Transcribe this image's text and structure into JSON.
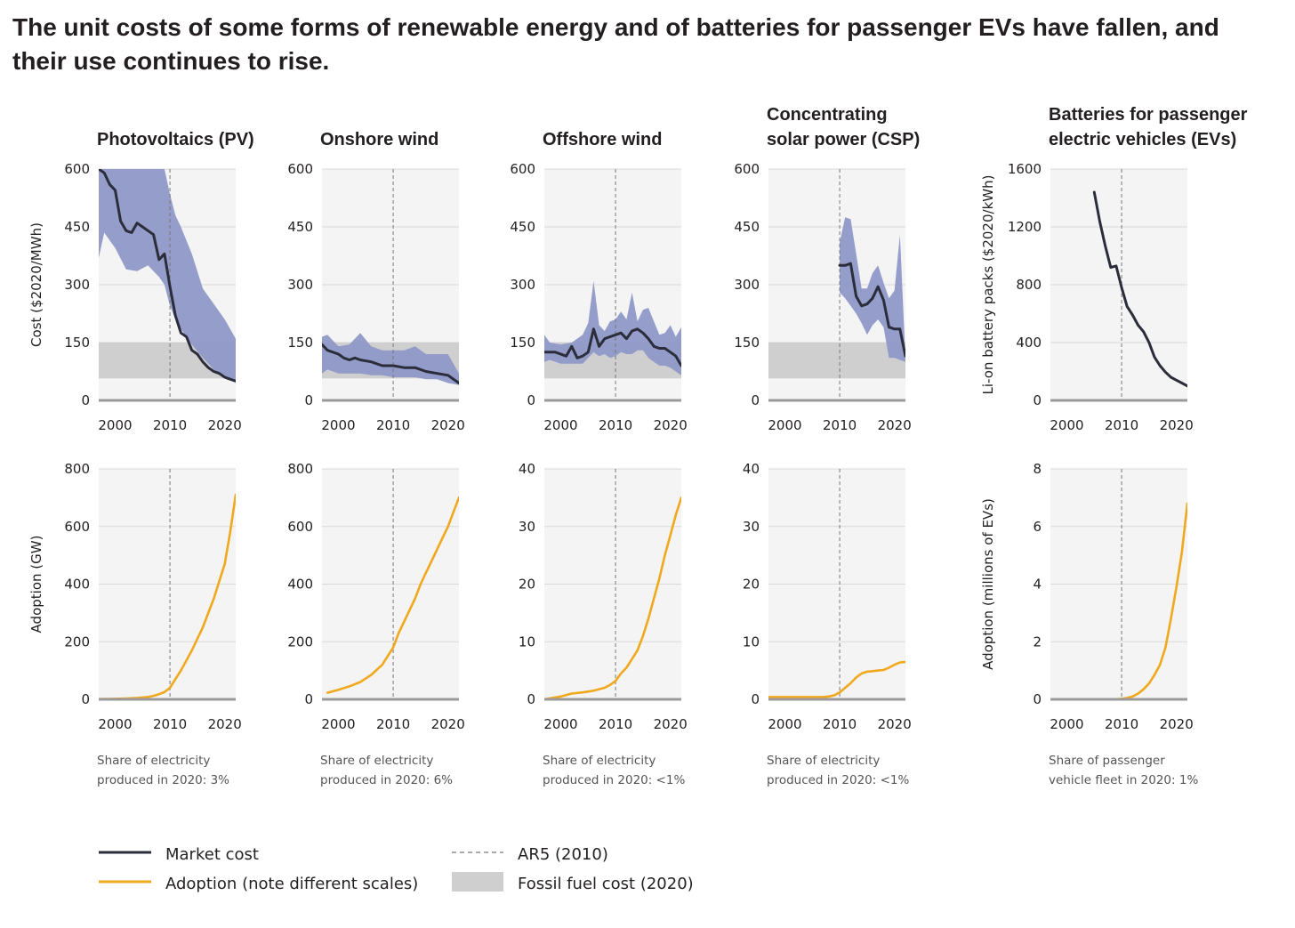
{
  "title": "The unit costs of some forms of renewable energy and of batteries for passenger EVs have fallen, and their use continues to rise.",
  "colors": {
    "cost_line": "#2b2d3a",
    "band": "#8f98c8",
    "adoption_line": "#f0a81c",
    "fossil_band": "#cfcfcf",
    "plot_bg": "#f4f4f4",
    "ar5_line": "#777777"
  },
  "legend": {
    "market_cost": "Market cost",
    "adoption": "Adoption (note different scales)",
    "ar5": "AR5 (2010)",
    "fossil": "Fossil fuel cost (2020)"
  },
  "chart_data": [
    {
      "type": "line",
      "panel": "Photovoltaics (PV)",
      "row": "cost",
      "title": [
        "Photovoltaics (PV)"
      ],
      "ylabel": "Cost ($2020/MWh)",
      "ylim": [
        0,
        600
      ],
      "yticks": [
        0,
        150,
        300,
        450,
        600
      ],
      "xlim": [
        1997,
        2022
      ],
      "xticks": [
        2000,
        2010,
        2020
      ],
      "ar5_year": 2010,
      "fossil_range": [
        57,
        150
      ],
      "series": [
        {
          "name": "Market cost",
          "x": [
            1997,
            1998,
            1999,
            2000,
            2001,
            2002,
            2003,
            2004,
            2005,
            2006,
            2007,
            2008,
            2009,
            2010,
            2011,
            2012,
            2013,
            2014,
            2015,
            2016,
            2017,
            2018,
            2019,
            2020,
            2021,
            2022
          ],
          "y": [
            600,
            590,
            560,
            545,
            465,
            440,
            435,
            460,
            450,
            440,
            430,
            365,
            380,
            295,
            220,
            175,
            165,
            130,
            120,
            100,
            85,
            75,
            70,
            60,
            55,
            50
          ]
        }
      ],
      "band": {
        "x": [
          1997,
          1998,
          2000,
          2002,
          2004,
          2006,
          2008,
          2009,
          2010,
          2011,
          2012,
          2014,
          2016,
          2018,
          2020,
          2022
        ],
        "low": [
          370,
          435,
          395,
          340,
          335,
          350,
          320,
          300,
          245,
          210,
          185,
          145,
          110,
          80,
          60,
          50
        ],
        "high": [
          600,
          600,
          600,
          600,
          600,
          600,
          600,
          600,
          535,
          480,
          450,
          380,
          290,
          250,
          210,
          160
        ]
      }
    },
    {
      "type": "line",
      "panel": "Onshore wind",
      "row": "cost",
      "title": [
        "Onshore wind"
      ],
      "ylim": [
        0,
        600
      ],
      "yticks": [
        0,
        150,
        300,
        450,
        600
      ],
      "xlim": [
        1997,
        2022
      ],
      "xticks": [
        2000,
        2010,
        2020
      ],
      "ar5_year": 2010,
      "fossil_range": [
        57,
        150
      ],
      "series": [
        {
          "name": "Market cost",
          "x": [
            1997,
            1998,
            2000,
            2001,
            2002,
            2003,
            2004,
            2006,
            2008,
            2010,
            2012,
            2014,
            2016,
            2018,
            2020,
            2021,
            2022
          ],
          "y": [
            145,
            130,
            120,
            110,
            105,
            110,
            105,
            100,
            90,
            90,
            85,
            85,
            75,
            70,
            65,
            55,
            45
          ]
        }
      ],
      "band": {
        "x": [
          1997,
          1998,
          2000,
          2002,
          2004,
          2006,
          2008,
          2010,
          2012,
          2014,
          2016,
          2018,
          2020,
          2022
        ],
        "low": [
          70,
          80,
          70,
          70,
          70,
          65,
          65,
          60,
          60,
          60,
          55,
          55,
          45,
          40
        ],
        "high": [
          165,
          170,
          140,
          145,
          175,
          140,
          130,
          130,
          130,
          140,
          120,
          120,
          120,
          70
        ]
      }
    },
    {
      "type": "line",
      "panel": "Offshore wind",
      "row": "cost",
      "title": [
        "Offshore wind"
      ],
      "ylim": [
        0,
        600
      ],
      "yticks": [
        0,
        150,
        300,
        450,
        600
      ],
      "xlim": [
        1997,
        2022
      ],
      "xticks": [
        2000,
        2010,
        2020
      ],
      "ar5_year": 2010,
      "fossil_range": [
        57,
        150
      ],
      "series": [
        {
          "name": "Market cost",
          "x": [
            1997,
            1999,
            2001,
            2002,
            2003,
            2004,
            2005,
            2006,
            2007,
            2008,
            2009,
            2010,
            2011,
            2012,
            2013,
            2014,
            2015,
            2016,
            2017,
            2018,
            2019,
            2020,
            2021,
            2022
          ],
          "y": [
            125,
            125,
            115,
            140,
            110,
            115,
            125,
            185,
            140,
            160,
            165,
            170,
            175,
            160,
            180,
            185,
            175,
            160,
            140,
            135,
            135,
            125,
            115,
            90
          ]
        }
      ],
      "band": {
        "x": [
          1997,
          1998,
          2000,
          2002,
          2004,
          2005,
          2006,
          2007,
          2008,
          2009,
          2010,
          2011,
          2012,
          2013,
          2014,
          2015,
          2016,
          2017,
          2018,
          2019,
          2020,
          2021,
          2022
        ],
        "low": [
          100,
          105,
          95,
          95,
          95,
          110,
          125,
          115,
          120,
          110,
          115,
          125,
          120,
          120,
          130,
          130,
          110,
          100,
          90,
          90,
          85,
          75,
          65
        ],
        "high": [
          170,
          150,
          145,
          150,
          170,
          200,
          310,
          195,
          180,
          205,
          210,
          230,
          210,
          280,
          205,
          235,
          240,
          205,
          170,
          175,
          195,
          165,
          190
        ]
      }
    },
    {
      "type": "line",
      "panel": "Concentrating solar power (CSP)",
      "row": "cost",
      "title": [
        "Concentrating",
        "solar power (CSP)"
      ],
      "ylim": [
        0,
        600
      ],
      "yticks": [
        0,
        150,
        300,
        450,
        600
      ],
      "xlim": [
        1997,
        2022
      ],
      "xticks": [
        2000,
        2010,
        2020
      ],
      "ar5_year": 2010,
      "fossil_range": [
        57,
        150
      ],
      "series": [
        {
          "name": "Market cost",
          "x": [
            2010,
            2011,
            2012,
            2013,
            2014,
            2015,
            2016,
            2017,
            2018,
            2019,
            2020,
            2021,
            2022
          ],
          "y": [
            350,
            350,
            355,
            270,
            245,
            250,
            265,
            295,
            260,
            190,
            185,
            185,
            115
          ]
        }
      ],
      "band": {
        "x": [
          2010,
          2011,
          2012,
          2013,
          2014,
          2015,
          2016,
          2017,
          2018,
          2019,
          2020,
          2021,
          2022
        ],
        "low": [
          280,
          265,
          245,
          225,
          200,
          170,
          195,
          210,
          190,
          110,
          110,
          105,
          100
        ],
        "high": [
          410,
          475,
          470,
          380,
          290,
          290,
          330,
          350,
          305,
          265,
          285,
          430,
          110
        ]
      }
    },
    {
      "type": "line",
      "panel": "Batteries for passenger electric vehicles (EVs)",
      "row": "cost",
      "title": [
        "Batteries for passenger",
        "electric vehicles (EVs)"
      ],
      "ylabel": "Li-on battery packs ($2020/kWh)",
      "ylim": [
        0,
        1600
      ],
      "yticks": [
        0,
        400,
        800,
        1200,
        1600
      ],
      "xlim": [
        1997,
        2022
      ],
      "xticks": [
        2000,
        2010,
        2020
      ],
      "ar5_year": 2010,
      "series": [
        {
          "name": "Market cost",
          "x": [
            2005,
            2006,
            2007,
            2008,
            2009,
            2010,
            2011,
            2012,
            2013,
            2014,
            2015,
            2016,
            2017,
            2018,
            2019,
            2020,
            2021,
            2022
          ],
          "y": [
            1440,
            1240,
            1070,
            920,
            930,
            780,
            650,
            590,
            520,
            475,
            400,
            300,
            240,
            195,
            160,
            140,
            120,
            100
          ]
        }
      ]
    },
    {
      "type": "line",
      "panel": "Photovoltaics (PV)",
      "row": "adoption",
      "ylabel": "Adoption (GW)",
      "ylim": [
        0,
        800
      ],
      "yticks": [
        0,
        200,
        400,
        600,
        800
      ],
      "xlim": [
        1997,
        2022
      ],
      "xticks": [
        2000,
        2010,
        2020
      ],
      "ar5_year": 2010,
      "note": [
        "Share of electricity",
        "produced in 2020: 3%"
      ],
      "series": [
        {
          "name": "Adoption",
          "x": [
            1997,
            2000,
            2002,
            2004,
            2006,
            2007,
            2008,
            2009,
            2010,
            2011,
            2012,
            2013,
            2014,
            2015,
            2016,
            2017,
            2018,
            2019,
            2020,
            2021,
            2022
          ],
          "y": [
            1,
            2,
            3,
            5,
            8,
            12,
            18,
            25,
            40,
            70,
            100,
            135,
            170,
            210,
            250,
            300,
            350,
            410,
            470,
            580,
            710
          ]
        }
      ]
    },
    {
      "type": "line",
      "panel": "Onshore wind",
      "row": "adoption",
      "ylim": [
        0,
        800
      ],
      "yticks": [
        0,
        200,
        400,
        600,
        800
      ],
      "xlim": [
        1997,
        2022
      ],
      "xticks": [
        2000,
        2010,
        2020
      ],
      "ar5_year": 2010,
      "note": [
        "Share of electricity",
        "produced in 2020: 6%"
      ],
      "series": [
        {
          "name": "Adoption",
          "x": [
            1998,
            2000,
            2002,
            2004,
            2006,
            2008,
            2010,
            2011,
            2012,
            2013,
            2014,
            2015,
            2016,
            2017,
            2018,
            2019,
            2020,
            2021,
            2022
          ],
          "y": [
            23,
            33,
            45,
            60,
            85,
            120,
            180,
            230,
            270,
            310,
            350,
            400,
            440,
            480,
            520,
            560,
            600,
            650,
            700
          ]
        }
      ]
    },
    {
      "type": "line",
      "panel": "Offshore wind",
      "row": "adoption",
      "ylim": [
        0,
        40
      ],
      "yticks": [
        0,
        10,
        20,
        30,
        40
      ],
      "xlim": [
        1997,
        2022
      ],
      "xticks": [
        2000,
        2010,
        2020
      ],
      "ar5_year": 2010,
      "note": [
        "Share of electricity",
        "produced in 2020: <1%"
      ],
      "series": [
        {
          "name": "Adoption",
          "x": [
            1997,
            2000,
            2002,
            2004,
            2006,
            2008,
            2009,
            2010,
            2011,
            2012,
            2013,
            2014,
            2015,
            2016,
            2017,
            2018,
            2019,
            2020,
            2021,
            2022
          ],
          "y": [
            0,
            0.5,
            1,
            1.2,
            1.5,
            2,
            2.5,
            3.2,
            4.5,
            5.5,
            7,
            8.5,
            11,
            14,
            17.5,
            21,
            25,
            28.5,
            32,
            35
          ]
        }
      ]
    },
    {
      "type": "line",
      "panel": "Concentrating solar power (CSP)",
      "row": "adoption",
      "ylim": [
        0,
        40
      ],
      "yticks": [
        0,
        10,
        20,
        30,
        40
      ],
      "xlim": [
        1997,
        2022
      ],
      "xticks": [
        2000,
        2010,
        2020
      ],
      "ar5_year": 2010,
      "note": [
        "Share of electricity",
        "produced in 2020: <1%"
      ],
      "series": [
        {
          "name": "Adoption",
          "x": [
            1997,
            2000,
            2004,
            2007,
            2008,
            2009,
            2010,
            2011,
            2012,
            2013,
            2014,
            2015,
            2016,
            2017,
            2018,
            2019,
            2020,
            2021,
            2022
          ],
          "y": [
            0.4,
            0.4,
            0.4,
            0.4,
            0.5,
            0.7,
            1.2,
            2,
            2.8,
            3.8,
            4.5,
            4.8,
            4.9,
            5,
            5.1,
            5.5,
            6,
            6.4,
            6.5
          ]
        }
      ]
    },
    {
      "type": "line",
      "panel": "Batteries for passenger electric vehicles (EVs)",
      "row": "adoption",
      "ylabel": "Adoption (millions of EVs)",
      "ylim": [
        0,
        8
      ],
      "yticks": [
        0,
        2,
        4,
        6,
        8
      ],
      "xlim": [
        1997,
        2022
      ],
      "xticks": [
        2000,
        2010,
        2020
      ],
      "ar5_year": 2010,
      "note": [
        "Share of passenger",
        "vehicle fleet in 2020: 1%"
      ],
      "series": [
        {
          "name": "Adoption",
          "x": [
            2004,
            2008,
            2010,
            2011,
            2012,
            2013,
            2014,
            2015,
            2016,
            2017,
            2018,
            2019,
            2020,
            2021,
            2022
          ],
          "y": [
            0,
            0,
            0.02,
            0.05,
            0.1,
            0.2,
            0.35,
            0.55,
            0.85,
            1.2,
            1.8,
            2.8,
            3.9,
            5.1,
            6.8
          ]
        }
      ]
    }
  ]
}
